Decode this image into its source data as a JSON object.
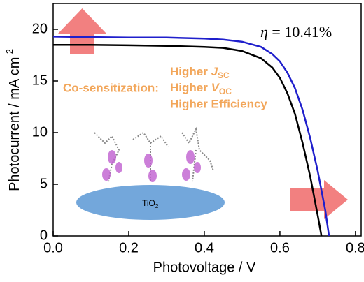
{
  "chart_data": {
    "type": "line",
    "xlabel": "Photovoltage / V",
    "ylabel": {
      "text": "Photocurrent / mA cm",
      "superscript": "-2"
    },
    "xlim": [
      0,
      0.815
    ],
    "ylim": [
      0,
      22.5
    ],
    "xticks": [
      {
        "value": 0,
        "label": "0.0"
      },
      0.2,
      0.4,
      0.6,
      0.8
    ],
    "yticks": [
      0,
      5,
      10,
      15,
      20
    ],
    "series": [
      {
        "color": "#000000",
        "x": [
          0,
          0.05,
          0.1,
          0.2,
          0.3,
          0.4,
          0.45,
          0.5,
          0.55,
          0.58,
          0.6,
          0.62,
          0.64,
          0.66,
          0.68,
          0.7,
          0.71
        ],
        "values": [
          18.5,
          18.5,
          18.5,
          18.45,
          18.4,
          18.3,
          18.2,
          17.9,
          17.2,
          16.3,
          15.3,
          13.8,
          11.8,
          9.0,
          5.8,
          2.0,
          0
        ]
      },
      {
        "color": "#1f1fcc",
        "x": [
          0,
          0.1,
          0.2,
          0.3,
          0.4,
          0.45,
          0.5,
          0.55,
          0.58,
          0.6,
          0.62,
          0.64,
          0.66,
          0.68,
          0.7,
          0.72,
          0.73
        ],
        "values": [
          19.3,
          19.25,
          19.2,
          19.2,
          19.1,
          19.0,
          18.8,
          18.3,
          17.6,
          16.9,
          15.8,
          14.3,
          12.2,
          9.5,
          6.3,
          2.5,
          0
        ]
      }
    ],
    "annotations": {
      "efficiency": {
        "symbol": "η",
        "text": " = 10.41%"
      },
      "cosensitization": "Co-sensitization:",
      "jsc": {
        "text": "Higher ",
        "symbol": "J",
        "subscript": "SC"
      },
      "voc": {
        "text": "Higher ",
        "symbol": "V",
        "subscript": "OC"
      },
      "eff": "Higher Efficiency",
      "substrate": {
        "text": "TiO",
        "subscript": "2"
      }
    }
  }
}
